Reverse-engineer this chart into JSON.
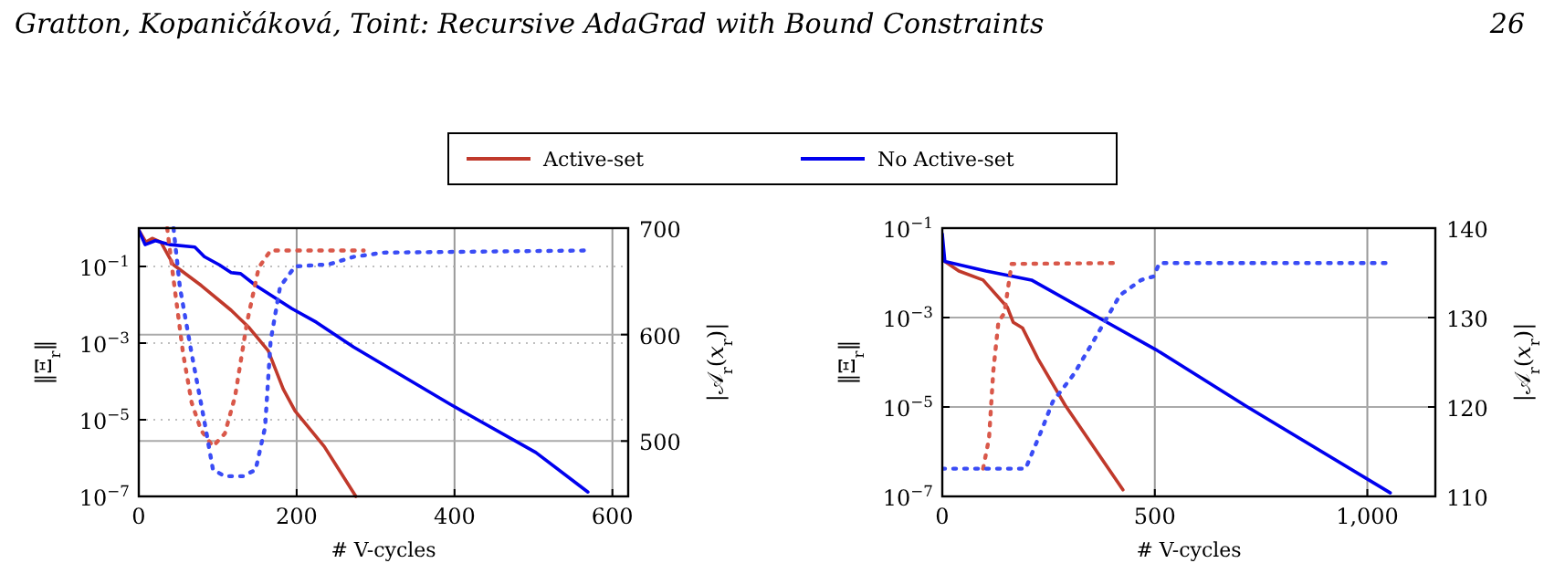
{
  "chart_data": [
    {
      "type": "line",
      "xlabel": "# V-cycles",
      "ylabel": "‖Ξ$_{r}$‖",
      "y2label": "|𝒜$_{r}$(𝑥$_{r}$)|",
      "log": "y",
      "grid": true,
      "legend": "top",
      "xlim": [
        0,
        620
      ],
      "xticks": [
        0,
        200,
        400,
        600
      ],
      "ylim": [
        1e-07,
        1
      ],
      "yticks": [
        {
          "value": 0.1,
          "label": "10$^{−1}$"
        },
        {
          "value": 0.001,
          "label": "10$^{−3}$"
        },
        {
          "value": 1e-05,
          "label": "10$^{−5}$"
        },
        {
          "value": 1e-07,
          "label": "10$^{−7}$"
        }
      ],
      "y2lim": [
        448,
        700
      ],
      "y2ticks": [
        500,
        600,
        700
      ],
      "annotations": [
        "Gratton, Kopaničáková, Toint: Recursive AdaGrad with Bound Constraints",
        "26"
      ],
      "series": [
        {
          "name": "Active-set",
          "color": "#c0392b",
          "line_style": "solid",
          "x": [
            0,
            9,
            17,
            28,
            44,
            79,
            117,
            140,
            164,
            183,
            198,
            235,
            275
          ],
          "values": [
            0.89,
            0.43,
            0.54,
            0.43,
            0.11,
            0.032,
            0.0072,
            0.0025,
            0.00063,
            6.3e-05,
            1.7e-05,
            2e-06,
            1e-07
          ]
        },
        {
          "name": "No Active-set",
          "color": "#0000ee",
          "line_style": "solid",
          "x": [
            0,
            8,
            21,
            40,
            71,
            83,
            102,
            117,
            129,
            148,
            194,
            225,
            272,
            395,
            503,
            569
          ],
          "values": [
            0.89,
            0.37,
            0.47,
            0.37,
            0.32,
            0.18,
            0.11,
            0.069,
            0.065,
            0.032,
            0.0079,
            0.0035,
            0.00079,
            2.5e-05,
            1.4e-06,
            1.3e-07
          ]
        },
        {
          "color": "#d9584a",
          "line_style": "dotted",
          "axis": "y2",
          "x": [
            36,
            44,
            56,
            67,
            79,
            94,
            109,
            122,
            137,
            152,
            167,
            202,
            285
          ],
          "values": [
            700,
            652,
            583,
            536,
            510,
            495,
            507,
            542,
            611,
            663,
            679,
            679,
            679
          ]
        },
        {
          "color": "#3a4cf5",
          "line_style": "dotted",
          "axis": "y2",
          "x": [
            44,
            52,
            67,
            83,
            94,
            109,
            132,
            148,
            160,
            167,
            179,
            198,
            241,
            272,
            310,
            569
          ],
          "values": [
            700,
            645,
            582,
            519,
            473,
            467,
            467,
            473,
            513,
            594,
            645,
            664,
            666,
            673,
            677,
            679
          ]
        }
      ]
    },
    {
      "type": "line",
      "xlabel": "# V-cycles",
      "ylabel": "‖Ξ$_{r}$‖",
      "y2label": "|𝒜$_{r}$(𝑥$_{r}$)|",
      "log": "y",
      "grid": true,
      "xlim": [
        0,
        1160
      ],
      "xticks": [
        0,
        500,
        {
          "value": 1000,
          "label": "1,000"
        }
      ],
      "ylim": [
        1e-07,
        0.1
      ],
      "yticks": [
        {
          "value": 0.1,
          "label": "10$^{−1}$"
        },
        {
          "value": 0.001,
          "label": "10$^{−3}$"
        },
        {
          "value": 1e-05,
          "label": "10$^{−5}$"
        },
        {
          "value": 1e-07,
          "label": "10$^{−7}$"
        }
      ],
      "y2lim": [
        110,
        140
      ],
      "y2ticks": [
        110,
        120,
        130,
        140
      ],
      "series": [
        {
          "color": "#c0392b",
          "line_style": "solid",
          "x": [
            6,
            39,
            96,
            153,
            167,
            189,
            225,
            289,
            425
          ],
          "values": [
            0.018,
            0.011,
            0.0069,
            0.0017,
            0.00078,
            0.00058,
            0.00012,
            1.1e-05,
            1.4e-07
          ]
        },
        {
          "color": "#0000ee",
          "line_style": "solid",
          "x": [
            0,
            6,
            103,
            210,
            375,
            503,
            718,
            1054
          ],
          "values": [
            0.074,
            0.018,
            0.011,
            0.0069,
            0.00091,
            0.00019,
            1e-05,
            1.2e-07
          ]
        },
        {
          "color": "#d9584a",
          "line_style": "dotted",
          "axis": "y2",
          "x": [
            96,
            110,
            120,
            132,
            146,
            163,
            418
          ],
          "values": [
            113.1,
            116.5,
            124,
            129.5,
            130.5,
            136,
            136.1
          ]
        },
        {
          "color": "#3a4cf5",
          "line_style": "dotted",
          "axis": "y2",
          "x": [
            0,
            196,
            232,
            260,
            310,
            361,
            418,
            468,
            497,
            511,
            1054
          ],
          "values": [
            113.1,
            113.1,
            117.2,
            120.6,
            123.7,
            127.8,
            132.5,
            134.2,
            134.6,
            136.1,
            136.1
          ]
        }
      ]
    }
  ]
}
